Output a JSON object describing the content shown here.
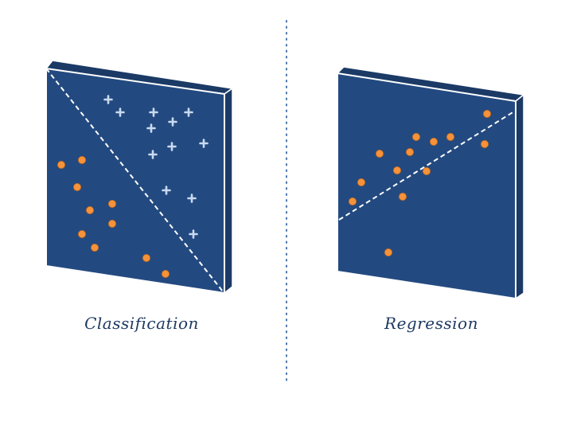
{
  "colors": {
    "panel_face": "#234a80",
    "panel_edge": "#1b3a66",
    "panel_border": "#ffffff",
    "divider": "#4f76a8",
    "circle_point": "#f5923a",
    "plus_point": "#c9d9f0",
    "caption_text": "#1f3a63"
  },
  "icons": {
    "circle_point": "orange-dot-icon",
    "plus_point": "plus-sign-icon"
  },
  "classification": {
    "label": "Classification"
  },
  "regression": {
    "label": "Regression"
  }
}
